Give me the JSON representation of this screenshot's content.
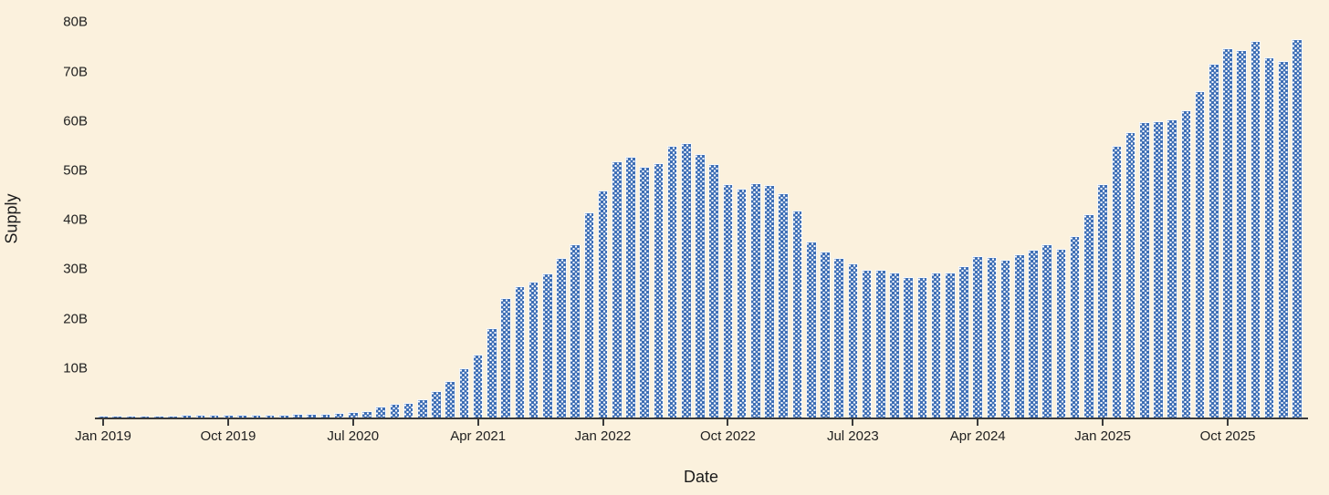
{
  "figure": {
    "background_color": "#fbf1dd",
    "bar_color": "#3d6eb5",
    "bar_pattern": "white-dot-grid",
    "bar_outline_color": "#ffffff",
    "axis_color": "#3b3b3b",
    "text_color": "#212121"
  },
  "chart_data": {
    "type": "bar",
    "title": "",
    "xlabel": "Date",
    "ylabel": "Supply",
    "units": "billions",
    "grid": false,
    "legend": null,
    "ylim": [
      0,
      80
    ],
    "y_tick_labels": [
      "10B",
      "20B",
      "30B",
      "40B",
      "50B",
      "60B",
      "70B",
      "80B"
    ],
    "y_tick_values": [
      10,
      20,
      30,
      40,
      50,
      60,
      70,
      80
    ],
    "x_tick_labels": [
      "Jan 2019",
      "Oct 2019",
      "Jul 2020",
      "Apr 2021",
      "Jan 2022",
      "Oct 2022",
      "Jul 2023",
      "Apr 2024",
      "Jan 2025",
      "Oct 2025"
    ],
    "x": [
      "Jan 2019",
      "Feb 2019",
      "Mar 2019",
      "Apr 2019",
      "May 2019",
      "Jun 2019",
      "Jul 2019",
      "Aug 2019",
      "Sep 2019",
      "Oct 2019",
      "Nov 2019",
      "Dec 2019",
      "Jan 2020",
      "Feb 2020",
      "Mar 2020",
      "Apr 2020",
      "May 2020",
      "Jun 2020",
      "Jul 2020",
      "Aug 2020",
      "Sep 2020",
      "Oct 2020",
      "Nov 2020",
      "Dec 2020",
      "Jan 2021",
      "Feb 2021",
      "Mar 2021",
      "Apr 2021",
      "May 2021",
      "Jun 2021",
      "Jul 2021",
      "Aug 2021",
      "Sep 2021",
      "Oct 2021",
      "Nov 2021",
      "Dec 2021",
      "Jan 2022",
      "Feb 2022",
      "Mar 2022",
      "Apr 2022",
      "May 2022",
      "Jun 2022",
      "Jul 2022",
      "Aug 2022",
      "Sep 2022",
      "Oct 2022",
      "Nov 2022",
      "Dec 2022",
      "Jan 2023",
      "Feb 2023",
      "Mar 2023",
      "Apr 2023",
      "May 2023",
      "Jun 2023",
      "Jul 2023",
      "Aug 2023",
      "Sep 2023",
      "Oct 2023",
      "Nov 2023",
      "Dec 2023",
      "Jan 2024",
      "Feb 2024",
      "Mar 2024",
      "Apr 2024",
      "May 2024",
      "Jun 2024",
      "Jul 2024",
      "Aug 2024",
      "Sep 2024",
      "Oct 2024",
      "Nov 2024",
      "Dec 2024",
      "Jan 2025",
      "Feb 2025",
      "Mar 2025",
      "Apr 2025",
      "May 2025",
      "Jun 2025",
      "Jul 2025",
      "Aug 2025",
      "Sep 2025",
      "Oct 2025",
      "Nov 2025",
      "Dec 2025",
      "Jan 2026",
      "Feb 2026",
      "Mar 2026"
    ],
    "values": [
      0.4,
      0.4,
      0.4,
      0.4,
      0.45,
      0.45,
      0.5,
      0.5,
      0.5,
      0.5,
      0.5,
      0.55,
      0.55,
      0.6,
      0.7,
      0.75,
      0.8,
      0.95,
      1.1,
      1.3,
      2.3,
      2.8,
      3.0,
      3.6,
      5.3,
      7.4,
      10.0,
      12.7,
      18.1,
      24.2,
      26.5,
      27.5,
      29.2,
      32.2,
      35.0,
      41.6,
      45.9,
      51.8,
      52.7,
      50.8,
      51.4,
      55.0,
      55.5,
      53.4,
      51.2,
      47.3,
      46.3,
      47.5,
      47.1,
      45.4,
      41.9,
      35.6,
      33.6,
      32.2,
      31.2,
      29.9,
      29.8,
      29.4,
      28.5,
      28.4,
      29.3,
      29.4,
      30.7,
      32.7,
      32.4,
      31.9,
      33.0,
      33.9,
      35.0,
      34.2,
      36.7,
      41.1,
      47.3,
      55.0,
      57.7,
      59.7,
      59.9,
      60.4,
      62.2,
      66.0,
      71.6,
      74.7,
      74.4,
      76.2,
      72.9,
      72.2,
      76.6
    ]
  }
}
